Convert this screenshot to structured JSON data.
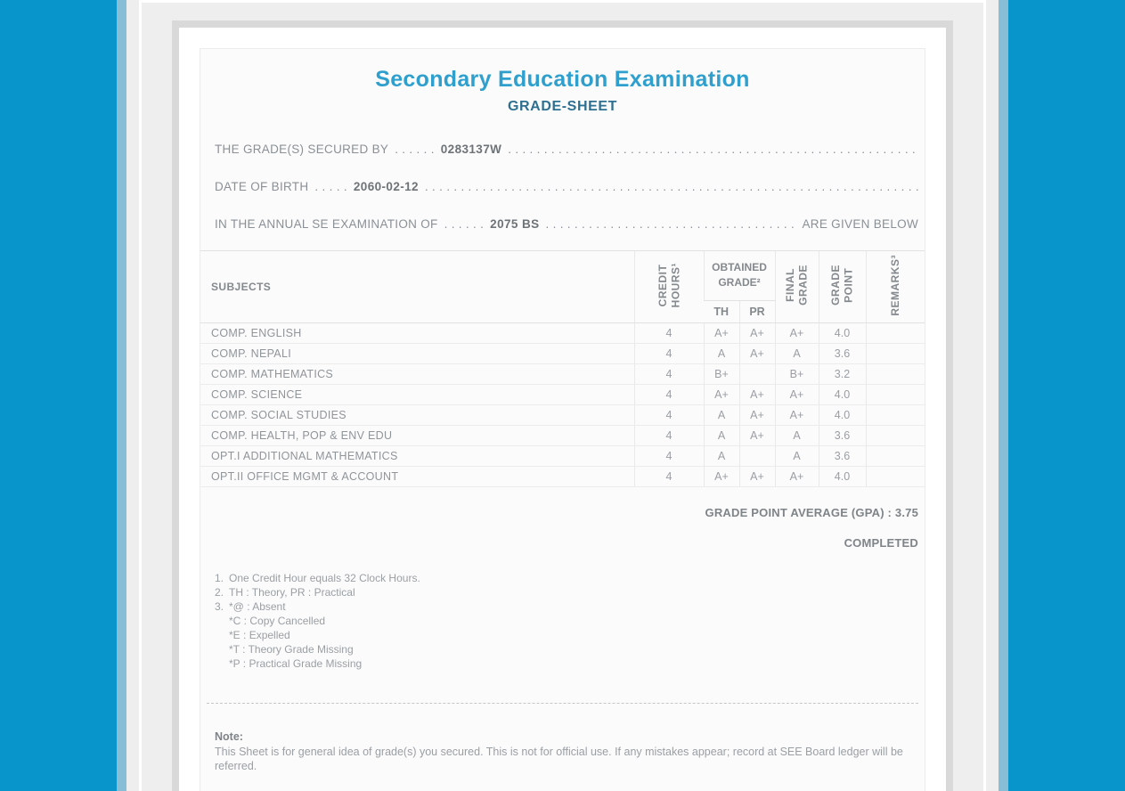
{
  "colors": {
    "frame_blue": "#0795CC",
    "stripe_blue": "#87BED5",
    "panel_gray": "#EEEEEE",
    "card_border_gray": "#D9D9D9",
    "title_cyan": "#2FA0CE",
    "subtitle_blue": "#2D7092"
  },
  "header": {
    "title": "Secondary Education Examination",
    "subtitle": "GRADE-SHEET"
  },
  "info": {
    "leader_fill": ". . . . . . . . . . . . . . . . . . . . . . . . . . . . . . . . . . . . . . . . . . . . . . . . . . . . . . . . . . . . . . . . . . . . . . . . . . . . . . . . . . . . . . . . . . . . . . . . . . . . . . . . . . . . . . . . . . . . . . . . . . . . . . . . . . . . . . . .",
    "lines": [
      {
        "label": "THE GRADE(S) SECURED BY",
        "pre_dots": ". . . . . .",
        "value": "0283137W",
        "trailer": ""
      },
      {
        "label": "DATE OF BIRTH",
        "pre_dots": ". . . . .",
        "value": "2060-02-12",
        "trailer": ""
      },
      {
        "label": "IN THE ANNUAL SE EXAMINATION OF",
        "pre_dots": ". . . . . .",
        "value": "2075 BS",
        "trailer": "ARE GIVEN BELOW"
      }
    ]
  },
  "table": {
    "headers": {
      "subjects": "SUBJECTS",
      "credit_hours": "CREDIT\nHOURS¹",
      "obtained_grade": "OBTAINED\nGRADE²",
      "th": "TH",
      "pr": "PR",
      "final_grade": "FINAL\nGRADE",
      "grade_point": "GRADE\nPOINT",
      "remarks": "REMARKS³"
    },
    "rows": [
      {
        "subject": "COMP. ENGLISH",
        "credit": "4",
        "th": "A+",
        "pr": "A+",
        "final": "A+",
        "gp": "4.0",
        "remarks": ""
      },
      {
        "subject": "COMP. NEPALI",
        "credit": "4",
        "th": "A",
        "pr": "A+",
        "final": "A",
        "gp": "3.6",
        "remarks": ""
      },
      {
        "subject": "COMP. MATHEMATICS",
        "credit": "4",
        "th": "B+",
        "pr": "",
        "final": "B+",
        "gp": "3.2",
        "remarks": ""
      },
      {
        "subject": "COMP. SCIENCE",
        "credit": "4",
        "th": "A+",
        "pr": "A+",
        "final": "A+",
        "gp": "4.0",
        "remarks": ""
      },
      {
        "subject": "COMP. SOCIAL STUDIES",
        "credit": "4",
        "th": "A",
        "pr": "A+",
        "final": "A+",
        "gp": "4.0",
        "remarks": ""
      },
      {
        "subject": "COMP. HEALTH, POP & ENV EDU",
        "credit": "4",
        "th": "A",
        "pr": "A+",
        "final": "A",
        "gp": "3.6",
        "remarks": ""
      },
      {
        "subject": "OPT.I ADDITIONAL MATHEMATICS",
        "credit": "4",
        "th": "A",
        "pr": "",
        "final": "A",
        "gp": "3.6",
        "remarks": ""
      },
      {
        "subject": "OPT.II OFFICE MGMT & ACCOUNT",
        "credit": "4",
        "th": "A+",
        "pr": "A+",
        "final": "A+",
        "gp": "4.0",
        "remarks": ""
      }
    ]
  },
  "summary": {
    "gpa_line": "GRADE POINT AVERAGE (GPA) : 3.75",
    "status": "COMPLETED"
  },
  "footnotes": [
    {
      "num": "1.",
      "lines": [
        "One Credit Hour equals 32 Clock Hours."
      ]
    },
    {
      "num": "2.",
      "lines": [
        "TH : Theory, PR : Practical"
      ]
    },
    {
      "num": "3.",
      "lines": [
        "*@ : Absent",
        "*C : Copy Cancelled",
        "*E : Expelled",
        "*T : Theory Grade Missing",
        "*P : Practical Grade Missing"
      ]
    }
  ],
  "note": {
    "heading": "Note:",
    "body": "This Sheet is for general idea of grade(s) you secured. This is not for official use. If any mistakes appear; record at SEE Board ledger will be referred."
  }
}
